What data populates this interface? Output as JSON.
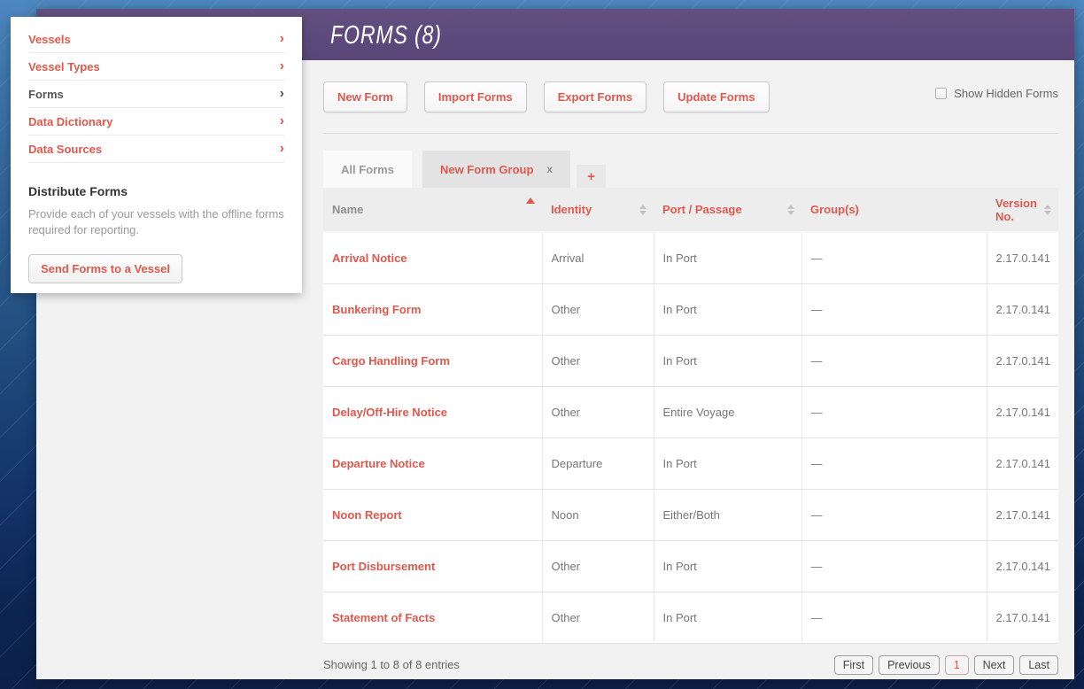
{
  "header": {
    "title": "FORMS (8)"
  },
  "menu": {
    "chevron": "›",
    "items": [
      {
        "label": "Vessels",
        "accent": true
      },
      {
        "label": "Vessel Types",
        "accent": true
      },
      {
        "label": "Forms",
        "accent": false
      },
      {
        "label": "Data Dictionary",
        "accent": true
      },
      {
        "label": "Data Sources",
        "accent": true
      }
    ],
    "distribute": {
      "title": "Distribute Forms",
      "description": "Provide each of your vessels with the offline forms required for reporting.",
      "button_label": "Send Forms to a Vessel"
    }
  },
  "toolbar": {
    "buttons": [
      "New Form",
      "Import Forms",
      "Export Forms",
      "Update Forms"
    ],
    "show_hidden_label": "Show Hidden Forms",
    "show_hidden_checked": false
  },
  "tabs": [
    {
      "label": "All Forms",
      "type": "tab",
      "active": true
    },
    {
      "label": "New Form Group",
      "type": "tab",
      "active": false,
      "closable": true,
      "close_label": "x"
    },
    {
      "label": "+",
      "type": "add"
    }
  ],
  "table": {
    "columns": [
      {
        "label": "Name",
        "sort": "asc",
        "sorted": true
      },
      {
        "label": "Identity",
        "sort": "both",
        "sorted": false
      },
      {
        "label": "Port / Passage",
        "sort": "both",
        "sorted": false
      },
      {
        "label": "Group(s)",
        "sort": "none",
        "sorted": false
      },
      {
        "label": "Version No.",
        "sort": "both",
        "sorted": false
      }
    ],
    "rows": [
      {
        "name": "Arrival Notice",
        "identity": "Arrival",
        "port_passage": "In Port",
        "groups": "—",
        "version": "2.17.0.141"
      },
      {
        "name": "Bunkering Form",
        "identity": "Other",
        "port_passage": "In Port",
        "groups": "—",
        "version": "2.17.0.141"
      },
      {
        "name": "Cargo Handling Form",
        "identity": "Other",
        "port_passage": "In Port",
        "groups": "—",
        "version": "2.17.0.141"
      },
      {
        "name": "Delay/Off-Hire Notice",
        "identity": "Other",
        "port_passage": "Entire Voyage",
        "groups": "—",
        "version": "2.17.0.141"
      },
      {
        "name": "Departure Notice",
        "identity": "Departure",
        "port_passage": "In Port",
        "groups": "—",
        "version": "2.17.0.141"
      },
      {
        "name": "Noon Report",
        "identity": "Noon",
        "port_passage": "Either/Both",
        "groups": "—",
        "version": "2.17.0.141"
      },
      {
        "name": "Port Disbursement",
        "identity": "Other",
        "port_passage": "In Port",
        "groups": "—",
        "version": "2.17.0.141"
      },
      {
        "name": "Statement of Facts",
        "identity": "Other",
        "port_passage": "In Port",
        "groups": "—",
        "version": "2.17.0.141"
      }
    ]
  },
  "footer": {
    "summary": "Showing 1 to 8 of 8 entries",
    "pagination": [
      {
        "label": "First",
        "current": false
      },
      {
        "label": "Previous",
        "current": false
      },
      {
        "label": "1",
        "current": true
      },
      {
        "label": "Next",
        "current": false
      },
      {
        "label": "Last",
        "current": false
      }
    ]
  },
  "colors": {
    "accent": "#e2574c",
    "header_purple": "#5d4a7d",
    "background_navy": "#0c2049"
  }
}
